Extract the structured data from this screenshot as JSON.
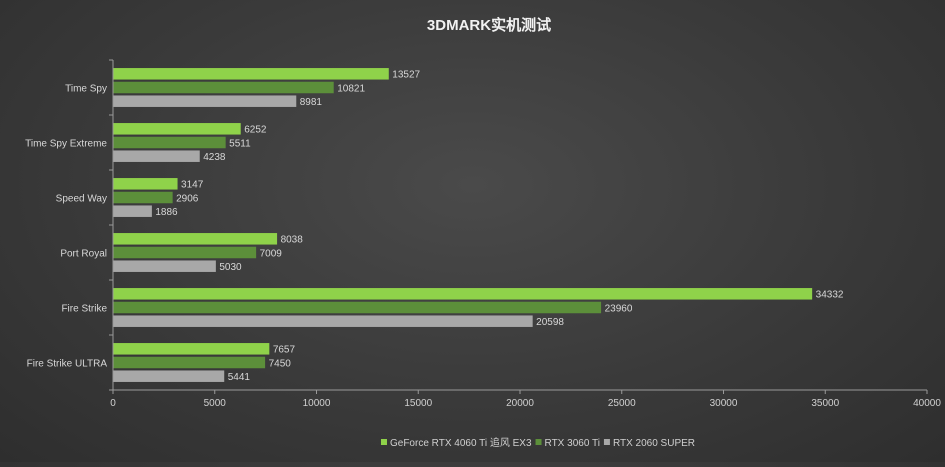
{
  "chart_data": {
    "type": "bar",
    "orientation": "horizontal",
    "title": "3DMARK实机测试",
    "categories": [
      "Time Spy",
      "Time Spy Extreme",
      "Speed Way",
      "Port Royal",
      "Fire Strike",
      "Fire Strike ULTRA"
    ],
    "series": [
      {
        "name": "GeForce RTX 4060 Ti 追风 EX3",
        "color": "#8fd24a",
        "values": [
          13527,
          6252,
          3147,
          8038,
          34332,
          7657
        ]
      },
      {
        "name": "RTX 3060 Ti",
        "color": "#5c8f3a",
        "values": [
          10821,
          5511,
          2906,
          7009,
          23960,
          7450
        ]
      },
      {
        "name": "RTX 2060 SUPER",
        "color": "#a8a8a8",
        "values": [
          8981,
          4238,
          1886,
          5030,
          20598,
          5441
        ]
      }
    ],
    "xlim": [
      0,
      40000
    ],
    "xticks": [
      0,
      5000,
      10000,
      15000,
      20000,
      25000,
      30000,
      35000,
      40000
    ],
    "grid": false,
    "legend_position": "bottom"
  }
}
